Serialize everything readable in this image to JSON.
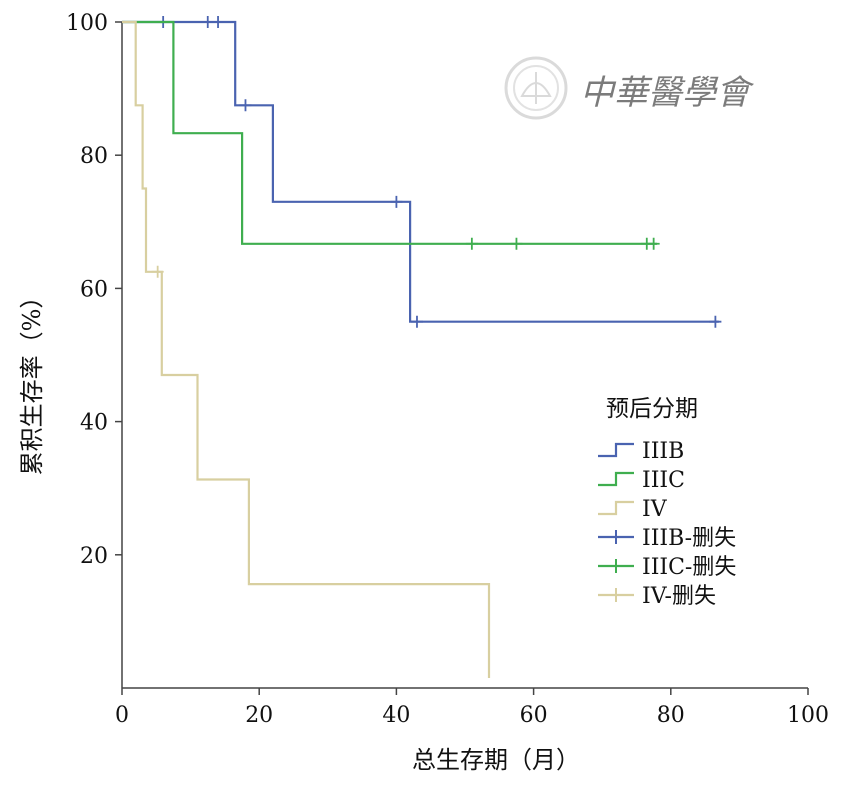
{
  "chart_data": {
    "type": "line",
    "title": "",
    "xlabel": "总生存期（月）",
    "ylabel": "累积生存率（%）",
    "xlim": [
      0,
      100
    ],
    "ylim": [
      0,
      100
    ],
    "x_ticks": [
      "0",
      "20",
      "40",
      "60",
      "80",
      "100"
    ],
    "y_ticks": [
      "20",
      "40",
      "60",
      "80",
      "100"
    ],
    "grid": false,
    "step": true,
    "legend_placement": "center-right",
    "legend_title": "预后分期",
    "legend": [
      "IIIB",
      "IIIC",
      "IV",
      "IIIB-删失",
      "IIIC-删失",
      "IV-删失"
    ],
    "series": [
      {
        "name": "IIIB",
        "color": "#4a63b0",
        "steps": [
          [
            0,
            100
          ],
          [
            16.5,
            100
          ],
          [
            16.5,
            87.5
          ],
          [
            22,
            87.5
          ],
          [
            22,
            73
          ],
          [
            42,
            73
          ],
          [
            42,
            55
          ],
          [
            87,
            55
          ]
        ],
        "censored": [
          [
            6,
            100
          ],
          [
            12.5,
            100
          ],
          [
            14,
            100
          ],
          [
            18,
            87.5
          ],
          [
            40,
            73
          ],
          [
            43,
            55
          ],
          [
            86.5,
            55
          ]
        ],
        "censored_legend": "IIIB-删失"
      },
      {
        "name": "IIIC",
        "color": "#3fae4f",
        "steps": [
          [
            0,
            100
          ],
          [
            7.5,
            100
          ],
          [
            7.5,
            83.3
          ],
          [
            17.5,
            83.3
          ],
          [
            17.5,
            66.7
          ],
          [
            78,
            66.7
          ]
        ],
        "censored": [
          [
            51,
            66.7
          ],
          [
            57.5,
            66.7
          ],
          [
            76.5,
            66.7
          ],
          [
            77.5,
            66.7
          ]
        ],
        "censored_legend": "IIIC-删失"
      },
      {
        "name": "IV",
        "color": "#d8cfa0",
        "steps": [
          [
            0,
            100
          ],
          [
            2,
            100
          ],
          [
            2,
            87.5
          ],
          [
            3,
            87.5
          ],
          [
            3,
            75
          ],
          [
            3.5,
            75
          ],
          [
            3.5,
            62.5
          ],
          [
            5.8,
            62.5
          ],
          [
            5.8,
            47
          ],
          [
            11,
            47
          ],
          [
            11,
            31.3
          ],
          [
            18.5,
            31.3
          ],
          [
            18.5,
            15.6
          ],
          [
            53.5,
            15.6
          ],
          [
            53.5,
            1.5
          ]
        ],
        "censored": [
          [
            5.2,
            62.5
          ]
        ],
        "censored_legend": "IV-删失"
      }
    ]
  },
  "watermark": {
    "text": "中華醫學會"
  }
}
